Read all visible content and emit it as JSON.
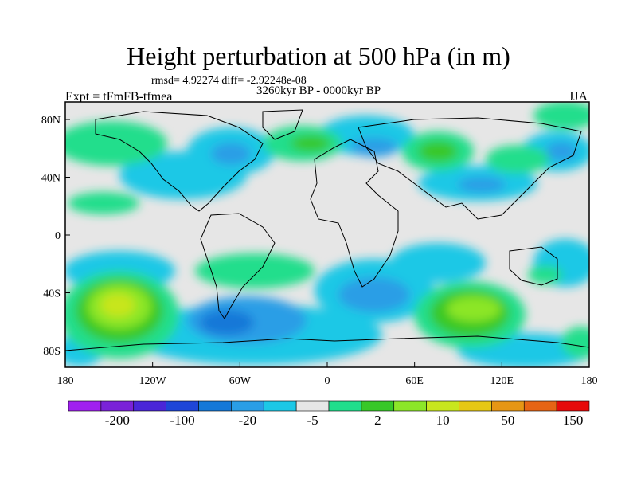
{
  "title": "Height perturbation at 500 hPa (in m)",
  "stats": "rmsd= 4.92274 diff= -2.92248e-08",
  "period": "3260kyr BP - 0000kyr BP",
  "experiment": "Expt = tFmFB-tfmea",
  "season": "JJA",
  "axes": {
    "lat_labels": [
      "80N",
      "40N",
      "0",
      "40S",
      "80S"
    ],
    "lon_labels": [
      "180",
      "120W",
      "60W",
      "0",
      "60E",
      "120E",
      "180"
    ]
  },
  "colorbar": {
    "colors": [
      "#a020f0",
      "#7a22d8",
      "#4a26d8",
      "#1e46d8",
      "#1478d8",
      "#2a9ee6",
      "#1cc8e6",
      "#e6e6e6",
      "#20de8c",
      "#38c828",
      "#8ce628",
      "#c8e61e",
      "#e6c814",
      "#e69614",
      "#e66414",
      "#e60a0a"
    ],
    "labels": [
      "-200",
      "-100",
      "-20",
      "-5",
      "2",
      "10",
      "50",
      "150"
    ]
  }
}
